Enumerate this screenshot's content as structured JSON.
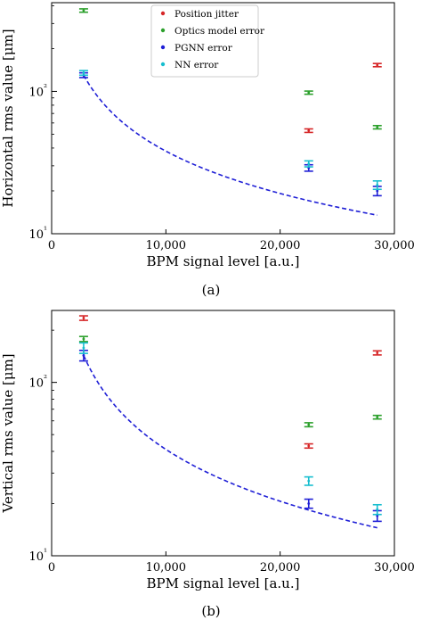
{
  "figure": {
    "captions": [
      "(a)",
      "(b)"
    ]
  },
  "chart_data": [
    {
      "type": "scatter",
      "panel": "(a)",
      "xlabel": "BPM signal level [a.u.]",
      "ylabel": "Horizontal rms value [μm]",
      "xscale": "linear",
      "yscale": "log",
      "xlim": [
        0,
        30000
      ],
      "ylim": [
        10,
        420
      ],
      "xticks": [
        0,
        10000,
        20000,
        30000
      ],
      "xtick_labels": [
        "0",
        "10,000",
        "20,000",
        "30,000"
      ],
      "yticks": [
        10,
        100
      ],
      "ytick_labels": [
        "10¹",
        "10²"
      ],
      "legend": {
        "placement": "top-center"
      },
      "series": [
        {
          "name": "Position jitter",
          "color": "#d62728",
          "marker": "errorbar",
          "points": [
            {
              "x": 22500,
              "y": 53,
              "err": 1.5
            },
            {
              "x": 28500,
              "y": 153,
              "err": 4
            }
          ]
        },
        {
          "name": "Optics model error",
          "color": "#2ca02c",
          "marker": "errorbar",
          "points": [
            {
              "x": 2800,
              "y": 370,
              "err": 10
            },
            {
              "x": 22500,
              "y": 98,
              "err": 2.5
            },
            {
              "x": 28500,
              "y": 56,
              "err": 1.5
            }
          ]
        },
        {
          "name": "PGNN error",
          "color": "#1f1fd6",
          "marker": "errorbar",
          "points": [
            {
              "x": 2800,
              "y": 130,
              "err": 5
            },
            {
              "x": 22500,
              "y": 29,
              "err": 1.5
            },
            {
              "x": 28500,
              "y": 20,
              "err": 1.5
            }
          ]
        },
        {
          "name": "NN error",
          "color": "#17becf",
          "marker": "errorbar",
          "points": [
            {
              "x": 2800,
              "y": 135,
              "err": 5
            },
            {
              "x": 22500,
              "y": 31,
              "err": 1.5
            },
            {
              "x": 28500,
              "y": 22,
              "err": 1.5
            }
          ]
        }
      ],
      "fit_curve": {
        "color": "#1f1fd6",
        "style": "dashed",
        "x_range": [
          2800,
          28500
        ],
        "y_at_x_range": [
          130,
          13.5
        ]
      }
    },
    {
      "type": "scatter",
      "panel": "(b)",
      "xlabel": "BPM signal level [a.u.]",
      "ylabel": "Vertical rms value [μm]",
      "xscale": "linear",
      "yscale": "log",
      "xlim": [
        0,
        30000
      ],
      "ylim": [
        10,
        260
      ],
      "xticks": [
        0,
        10000,
        20000,
        30000
      ],
      "xtick_labels": [
        "0",
        "10,000",
        "20,000",
        "30,000"
      ],
      "yticks": [
        10,
        100
      ],
      "ytick_labels": [
        "10¹",
        "10²"
      ],
      "series": [
        {
          "name": "Position jitter",
          "color": "#d62728",
          "marker": "errorbar",
          "points": [
            {
              "x": 2800,
              "y": 235,
              "err": 7
            },
            {
              "x": 22500,
              "y": 43,
              "err": 1.2
            },
            {
              "x": 28500,
              "y": 148,
              "err": 4
            }
          ]
        },
        {
          "name": "Optics model error",
          "color": "#2ca02c",
          "marker": "errorbar",
          "points": [
            {
              "x": 2800,
              "y": 178,
              "err": 6
            },
            {
              "x": 22500,
              "y": 57,
              "err": 1.5
            },
            {
              "x": 28500,
              "y": 63,
              "err": 1.5
            }
          ]
        },
        {
          "name": "PGNN error",
          "color": "#1f1fd6",
          "marker": "errorbar",
          "points": [
            {
              "x": 2800,
              "y": 143,
              "err": 10
            },
            {
              "x": 22500,
              "y": 20,
              "err": 1.2
            },
            {
              "x": 28500,
              "y": 17,
              "err": 1.2
            }
          ]
        },
        {
          "name": "NN error",
          "color": "#17becf",
          "marker": "errorbar",
          "points": [
            {
              "x": 2800,
              "y": 158,
              "err": 11
            },
            {
              "x": 22500,
              "y": 27,
              "err": 1.5
            },
            {
              "x": 28500,
              "y": 18.5,
              "err": 1.2
            }
          ]
        }
      ],
      "fit_curve": {
        "color": "#1f1fd6",
        "style": "dashed",
        "x_range": [
          2800,
          28500
        ],
        "y_at_x_range": [
          143,
          14.5
        ]
      }
    }
  ]
}
